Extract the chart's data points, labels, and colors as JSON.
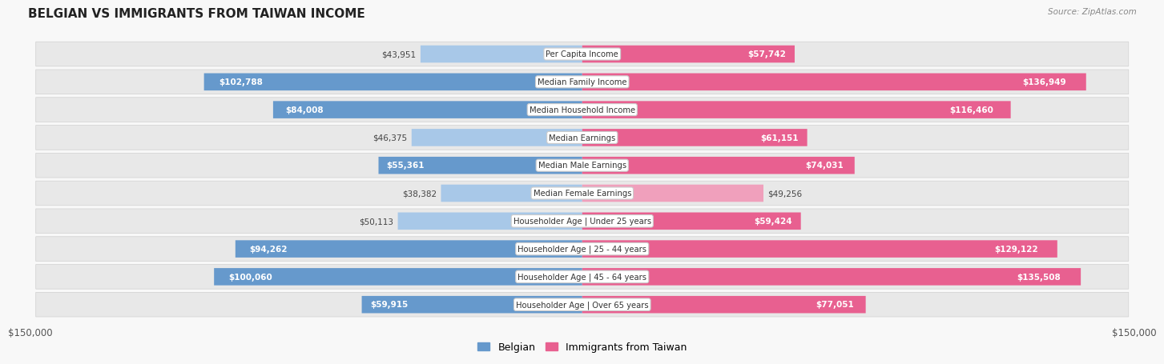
{
  "title": "Belgian vs Immigrants from Taiwan Income",
  "source": "Source: ZipAtlas.com",
  "max_value": 150000,
  "categories": [
    "Per Capita Income",
    "Median Family Income",
    "Median Household Income",
    "Median Earnings",
    "Median Male Earnings",
    "Median Female Earnings",
    "Householder Age | Under 25 years",
    "Householder Age | 25 - 44 years",
    "Householder Age | 45 - 64 years",
    "Householder Age | Over 65 years"
  ],
  "belgian_values": [
    43951,
    102788,
    84008,
    46375,
    55361,
    38382,
    50113,
    94262,
    100060,
    59915
  ],
  "taiwan_values": [
    57742,
    136949,
    116460,
    61151,
    74031,
    49256,
    59424,
    129122,
    135508,
    77051
  ],
  "belgian_labels": [
    "$43,951",
    "$102,788",
    "$84,008",
    "$46,375",
    "$55,361",
    "$38,382",
    "$50,113",
    "$94,262",
    "$100,060",
    "$59,915"
  ],
  "taiwan_labels": [
    "$57,742",
    "$136,949",
    "$116,460",
    "$61,151",
    "$74,031",
    "$49,256",
    "$59,424",
    "$129,122",
    "$135,508",
    "$77,051"
  ],
  "belgian_color_light": "#a8c8e8",
  "belgian_color_dark": "#6699cc",
  "taiwan_color_light": "#f0a0bc",
  "taiwan_color_dark": "#e86090",
  "inside_label_threshold": 55000,
  "background_color": "#f8f8f8",
  "row_bg_color": "#ebebeb",
  "bar_height": 0.62,
  "legend_belgian": "Belgian",
  "legend_taiwan": "Immigrants from Taiwan"
}
